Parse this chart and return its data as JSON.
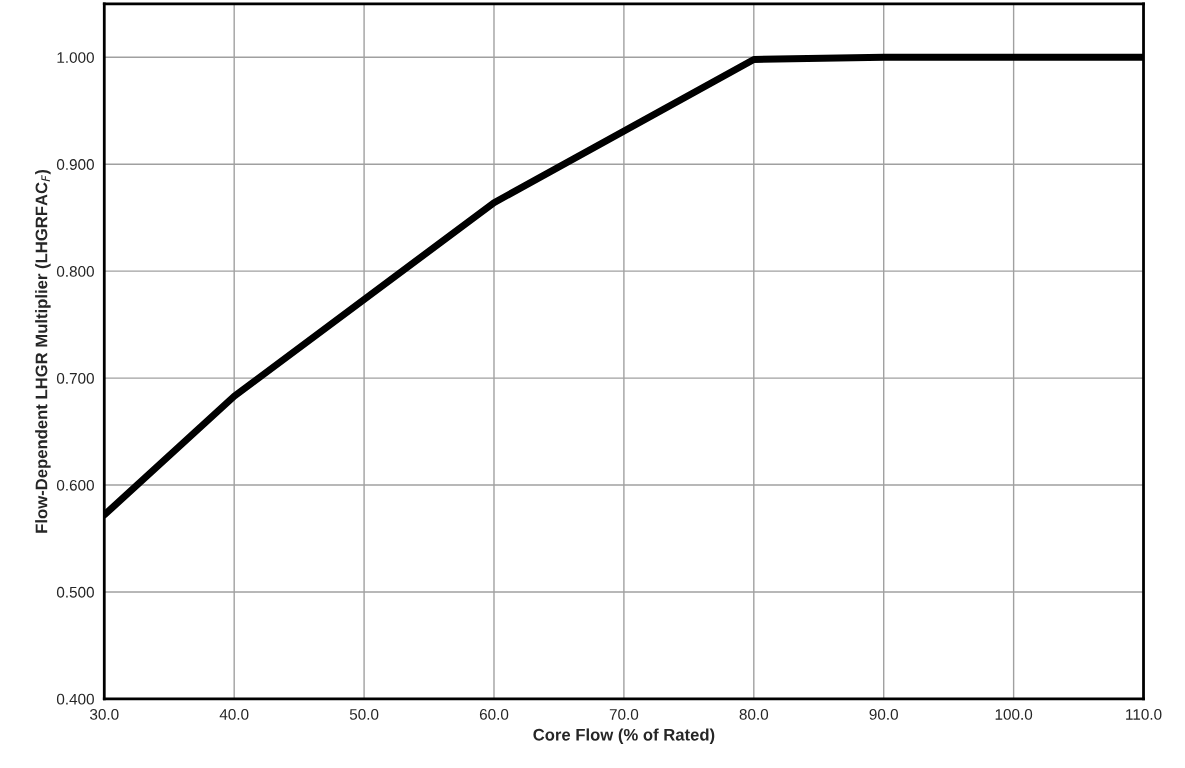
{
  "chart_data": {
    "type": "line",
    "xlabel": "Core Flow (% of Rated)",
    "ylabel": "Flow-Dependent LHGR Multiplier (LHGRFAC$_{F}$)",
    "x": [
      30,
      40,
      60,
      80,
      90,
      110
    ],
    "series": [
      {
        "color": "#000000",
        "values": [
          0.572,
          0.683,
          0.864,
          0.998,
          1.0,
          1.0
        ]
      }
    ],
    "xlim": [
      30,
      110
    ],
    "ylim": [
      0.4,
      1.05
    ],
    "xticks": [
      {
        "value": 30,
        "label": "30.0"
      },
      {
        "value": 40,
        "label": "40.0"
      },
      {
        "value": 50,
        "label": "50.0"
      },
      {
        "value": 60,
        "label": "60.0"
      },
      {
        "value": 70,
        "label": "70.0"
      },
      {
        "value": 80,
        "label": "80.0"
      },
      {
        "value": 90,
        "label": "90.0"
      },
      {
        "value": 100,
        "label": "100.0"
      },
      {
        "value": 110,
        "label": "110.0"
      }
    ],
    "yticks": [
      {
        "value": 0.4,
        "label": "0.400"
      },
      {
        "value": 0.5,
        "label": "0.500"
      },
      {
        "value": 0.6,
        "label": "0.600"
      },
      {
        "value": 0.7,
        "label": "0.700"
      },
      {
        "value": 0.8,
        "label": "0.800"
      },
      {
        "value": 0.9,
        "label": "0.900"
      },
      {
        "value": 1.0,
        "label": "1.000"
      }
    ],
    "grid": true,
    "line_style": "solid",
    "marker": "none"
  }
}
